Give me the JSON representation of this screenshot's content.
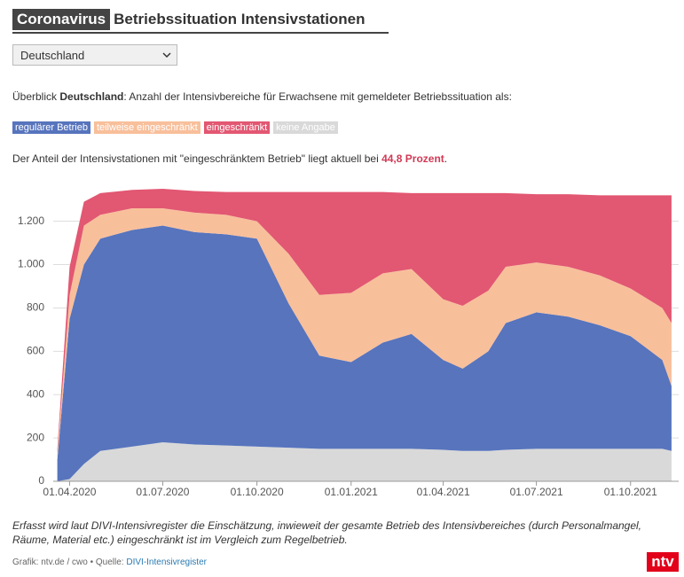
{
  "header": {
    "tag": "Coronavirus",
    "title": "Betriebssituation Intensivstationen"
  },
  "selector": {
    "value": "Deutschland"
  },
  "intro": {
    "prefix": "Überblick ",
    "region": "Deutschland",
    "text": ": Anzahl der Intensivbereiche für Erwachsene mit gemeldeter Betriebssituation als:"
  },
  "status": {
    "text": "Der Anteil der Intensivstationen mit \"eingeschränktem Betrieb\" liegt aktuell bei ",
    "value": "44,8 Prozent",
    "end": "."
  },
  "chart_data": {
    "type": "area",
    "stacked": true,
    "x": [
      "2020-03-20",
      "2020-04-01",
      "2020-04-15",
      "2020-05-01",
      "2020-06-01",
      "2020-07-01",
      "2020-08-01",
      "2020-09-01",
      "2020-10-01",
      "2020-11-01",
      "2020-12-01",
      "2021-01-01",
      "2021-02-01",
      "2021-03-01",
      "2021-04-01",
      "2021-04-20",
      "2021-05-15",
      "2021-06-01",
      "2021-07-01",
      "2021-08-01",
      "2021-09-01",
      "2021-10-01",
      "2021-11-01",
      "2021-11-10"
    ],
    "series": [
      {
        "name": "keine Angabe",
        "color": "#d9d9d9",
        "values": [
          0,
          10,
          80,
          140,
          160,
          180,
          170,
          165,
          160,
          155,
          150,
          150,
          150,
          150,
          145,
          140,
          140,
          145,
          150,
          150,
          150,
          150,
          150,
          140
        ]
      },
      {
        "name": "regulärer Betrieb",
        "color": "#5774bd",
        "values": [
          100,
          740,
          920,
          980,
          1000,
          1000,
          980,
          975,
          960,
          665,
          430,
          400,
          490,
          530,
          415,
          380,
          460,
          585,
          630,
          610,
          570,
          520,
          410,
          300
        ]
      },
      {
        "name": "teilweise eingeschränkt",
        "color": "#f8bf9b",
        "values": [
          30,
          110,
          180,
          110,
          100,
          80,
          90,
          90,
          80,
          230,
          280,
          320,
          320,
          300,
          280,
          290,
          280,
          260,
          230,
          230,
          230,
          220,
          240,
          290
        ]
      },
      {
        "name": "eingeschränkt",
        "color": "#e25772",
        "values": [
          20,
          130,
          110,
          100,
          85,
          90,
          100,
          105,
          135,
          285,
          475,
          465,
          375,
          350,
          490,
          520,
          450,
          340,
          315,
          335,
          370,
          430,
          520,
          590
        ]
      }
    ],
    "xlim": [
      "2020-03-16",
      "2021-11-17"
    ],
    "xticks": [
      {
        "value": "2020-04-01",
        "label": "01.04.2020"
      },
      {
        "value": "2020-07-01",
        "label": "01.07.2020"
      },
      {
        "value": "2020-10-01",
        "label": "01.10.2020"
      },
      {
        "value": "2021-01-01",
        "label": "01.01.2021"
      },
      {
        "value": "2021-04-01",
        "label": "01.04.2021"
      },
      {
        "value": "2021-07-01",
        "label": "01.07.2021"
      },
      {
        "value": "2021-10-01",
        "label": "01.10.2021"
      }
    ],
    "ylim": [
      0,
      1350
    ],
    "yticks": [
      0,
      200,
      400,
      600,
      800,
      {
        "value": 1000,
        "label": "1.000"
      },
      {
        "value": 1200,
        "label": "1.200"
      }
    ],
    "grid": true
  },
  "footnote": "Erfasst wird laut DIVI-Intensivregister die Einschätzung, inwieweit der gesamte Betrieb des Intensivbereiches (durch Personalmangel, Räume, Material etc.) eingeschränkt ist im Vergleich zum Regelbetrieb.",
  "credit": {
    "text": "Grafik: ntv.de / cwo • Quelle: ",
    "link": "DIVI-Intensivregister"
  },
  "logo": "ntv"
}
